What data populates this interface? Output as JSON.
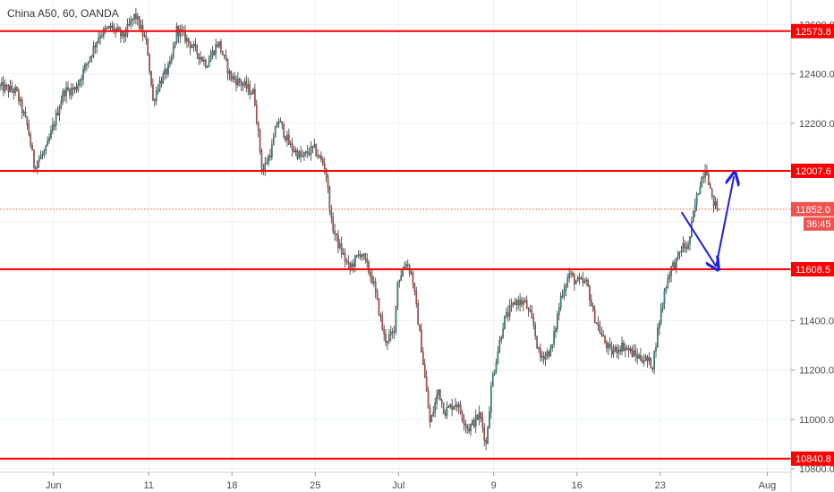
{
  "chart_data": {
    "type": "candlestick",
    "title": "China A50, 60, OANDA",
    "ylim": [
      10760,
      12700
    ],
    "y_ticks": [
      10800,
      11000,
      11200,
      11400,
      11600,
      12200,
      12400,
      12600
    ],
    "y_tick_labels": [
      "10800.0",
      "11000.0",
      "11200.0",
      "11400.0",
      "11600.0",
      "12200.0",
      "12400.0",
      "12600.0"
    ],
    "x_ticks": [
      "Jun",
      "11",
      "18",
      "25",
      "Jul",
      "9",
      "16",
      "23",
      "Aug"
    ],
    "x_tick_index": [
      0,
      8,
      15,
      22,
      29,
      37,
      44,
      51,
      60
    ],
    "x_range": [
      -4.5,
      62
    ],
    "last_price": 11852.0,
    "last_price_label": "11852.0",
    "countdown_label": "36:45",
    "horizontal_levels": [
      {
        "value": 12573.8,
        "label": "12573.8"
      },
      {
        "value": 12007.6,
        "label": "12007.6"
      },
      {
        "value": 11608.5,
        "label": "11608.5"
      },
      {
        "value": 10840.8,
        "label": "10840.8"
      }
    ],
    "path_forecast": [
      [
        52.8,
        11840
      ],
      [
        55.7,
        11620
      ],
      [
        57.2,
        11985
      ]
    ],
    "anchors": [
      [
        -4.5,
        12350
      ],
      [
        -3,
        12330
      ],
      [
        -2,
        12180
      ],
      [
        -1.5,
        12030
      ],
      [
        -0.5,
        12090
      ],
      [
        1,
        12330
      ],
      [
        2,
        12340
      ],
      [
        3,
        12450
      ],
      [
        4,
        12560
      ],
      [
        5,
        12590
      ],
      [
        6,
        12550
      ],
      [
        7,
        12640
      ],
      [
        8,
        12520
      ],
      [
        8.5,
        12290
      ],
      [
        9,
        12360
      ],
      [
        10,
        12440
      ],
      [
        10.5,
        12580
      ],
      [
        11,
        12560
      ],
      [
        12,
        12500
      ],
      [
        13,
        12440
      ],
      [
        14,
        12530
      ],
      [
        15,
        12390
      ],
      [
        16,
        12360
      ],
      [
        17,
        12320
      ],
      [
        17.7,
        12000
      ],
      [
        18.5,
        12100
      ],
      [
        19,
        12220
      ],
      [
        20,
        12110
      ],
      [
        21,
        12060
      ],
      [
        22,
        12100
      ],
      [
        23,
        12020
      ],
      [
        23.5,
        11800
      ],
      [
        24,
        11720
      ],
      [
        25,
        11610
      ],
      [
        26,
        11680
      ],
      [
        27,
        11560
      ],
      [
        28,
        11320
      ],
      [
        28.8,
        11350
      ],
      [
        29,
        11550
      ],
      [
        29.8,
        11640
      ],
      [
        30.3,
        11580
      ],
      [
        31,
        11320
      ],
      [
        31.8,
        10980
      ],
      [
        32.5,
        11120
      ],
      [
        33,
        11030
      ],
      [
        34,
        11070
      ],
      [
        35,
        10960
      ],
      [
        36,
        11020
      ],
      [
        36.5,
        10900
      ],
      [
        37,
        11160
      ],
      [
        38,
        11400
      ],
      [
        39,
        11480
      ],
      [
        39.8,
        11470
      ],
      [
        40.5,
        11380
      ],
      [
        41,
        11250
      ],
      [
        42,
        11280
      ],
      [
        42.8,
        11500
      ],
      [
        43.5,
        11590
      ],
      [
        44,
        11560
      ],
      [
        45,
        11550
      ],
      [
        45.5,
        11430
      ],
      [
        46.3,
        11330
      ],
      [
        47,
        11270
      ],
      [
        48,
        11300
      ],
      [
        49,
        11260
      ],
      [
        50,
        11240
      ],
      [
        50.5,
        11220
      ],
      [
        51,
        11380
      ],
      [
        51.5,
        11520
      ],
      [
        52,
        11610
      ],
      [
        52.5,
        11640
      ],
      [
        53,
        11700
      ],
      [
        53.5,
        11700
      ],
      [
        54,
        11850
      ],
      [
        54.5,
        11960
      ],
      [
        55,
        12030
      ],
      [
        55.5,
        11890
      ],
      [
        56,
        11852
      ]
    ],
    "colors": {
      "up": "#26a69a",
      "down": "#ef5350",
      "wick": "#333333",
      "level": "#ff0000",
      "forecast": "#1f1fe0"
    }
  }
}
